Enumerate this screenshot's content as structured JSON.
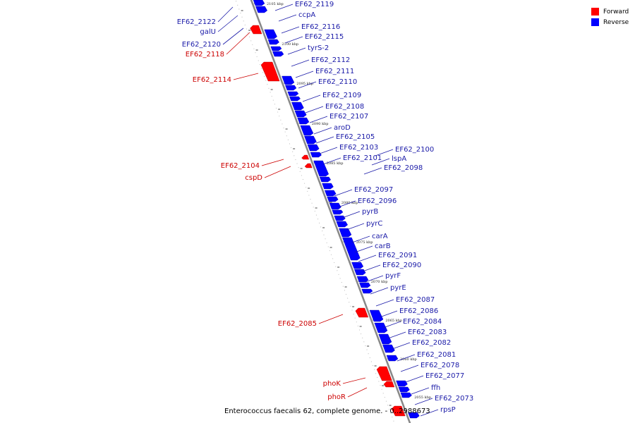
{
  "caption": "Enterococcus faecalis 62, complete genome. - 0..2988673",
  "legend": [
    {
      "label": "Forward",
      "color": "#ff0000"
    },
    {
      "label": "Reverse",
      "color": "#0000ff"
    }
  ],
  "colors": {
    "forward": "#ff0000",
    "reverse": "#0000ff",
    "forward_label": "#cc0000",
    "reverse_label": "#1a1aa8",
    "backbone": "#888888"
  },
  "ticks": [
    "2105 kbp",
    "2100 kbp",
    "2095 kbp",
    "2090 kbp",
    "2085 kbp",
    "2080 kbp",
    "2075 kbp",
    "2070 kbp",
    "2065 kbp",
    "2060 kbp",
    "2055 kbp"
  ],
  "reverse_genes": [
    "EF62_2119",
    "ccpA",
    "EF62_2116",
    "EF62_2115",
    "tyrS-2",
    "EF62_2112",
    "EF62_2111",
    "EF62_2110",
    "EF62_2109",
    "EF62_2108",
    "EF62_2107",
    "aroD",
    "EF62_2105",
    "EF62_2103",
    "EF62_2101",
    "EF62_2100",
    "lspA",
    "EF62_2098",
    "EF62_2097",
    "EF62_2096",
    "pyrB",
    "pyrC",
    "carA",
    "carB",
    "EF62_2091",
    "EF62_2090",
    "pyrF",
    "pyrE",
    "EF62_2087",
    "EF62_2086",
    "EF62_2084",
    "EF62_2083",
    "EF62_2082",
    "EF62_2081",
    "EF62_2078",
    "EF62_2077",
    "ffh",
    "EF62_2073",
    "rpsP"
  ],
  "upper_left_reverse_genes": [
    "EF62_2122",
    "galU",
    "EF62_2120"
  ],
  "forward_genes": [
    "EF62_2118",
    "EF62_2114",
    "EF62_2104",
    "cspD",
    "EF62_2085",
    "phoK",
    "phoR"
  ]
}
